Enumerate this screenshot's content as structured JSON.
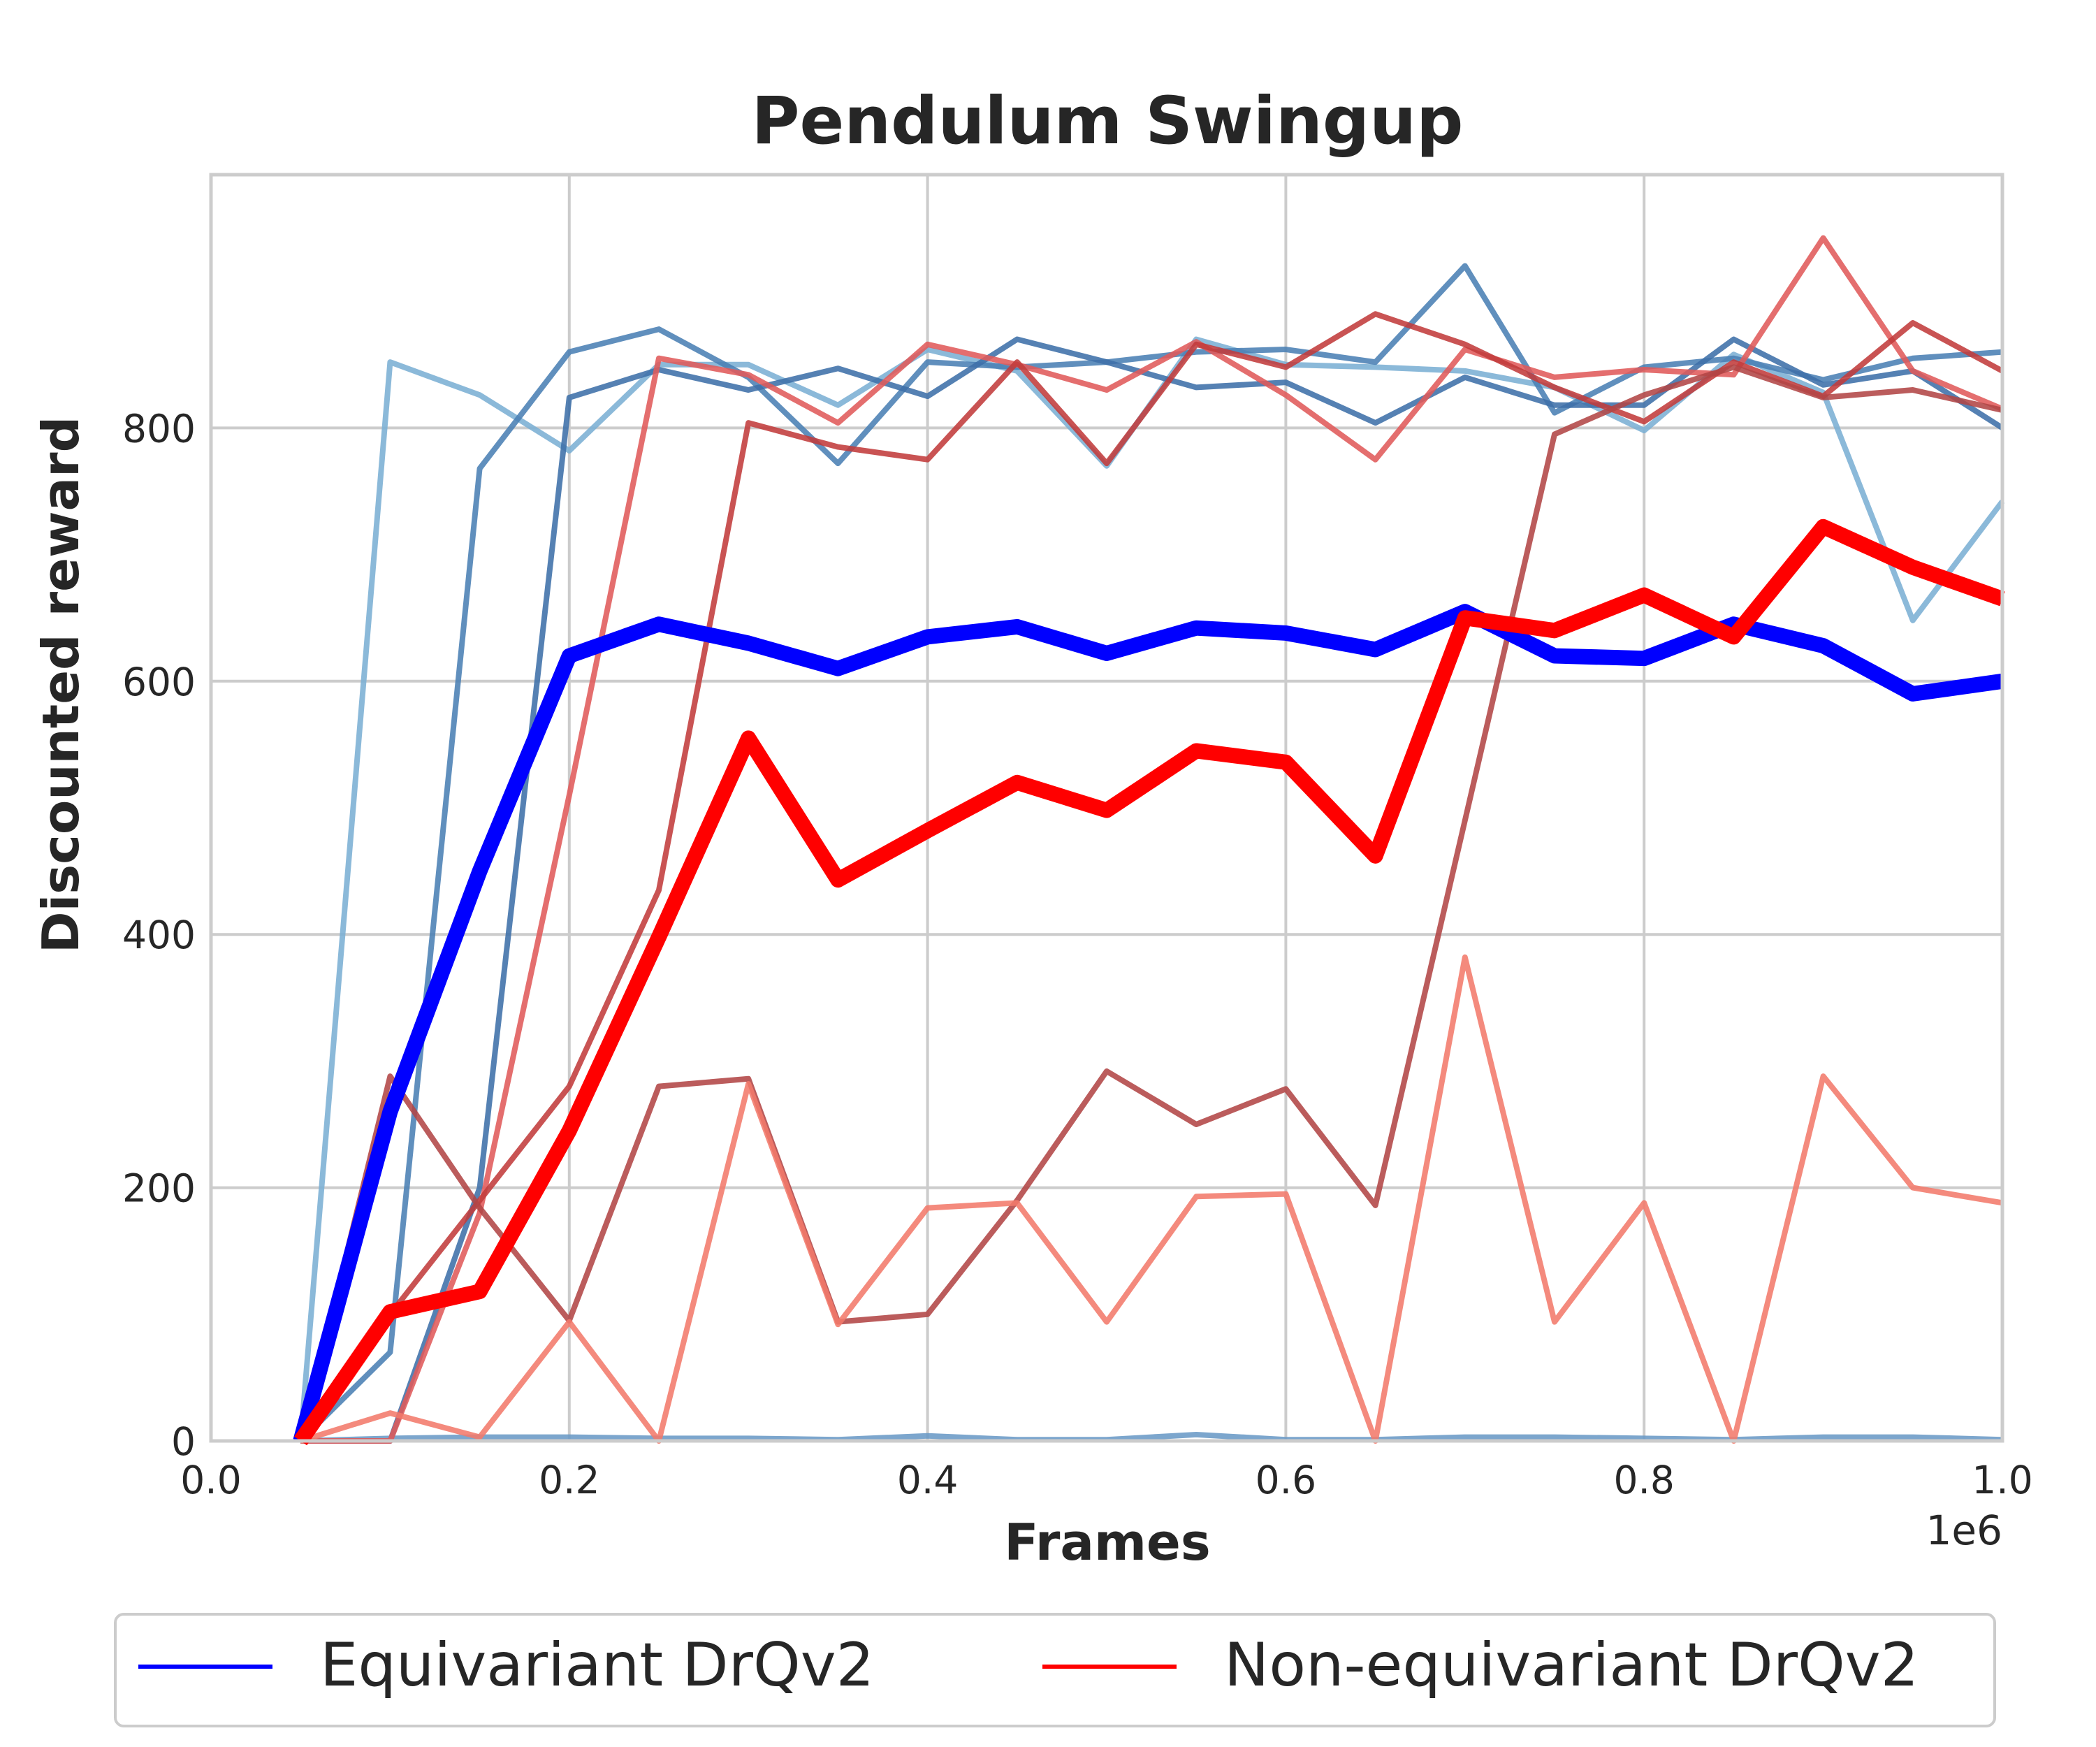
{
  "chart_data": {
    "type": "line",
    "title": "Pendulum Swingup",
    "xlabel": "Frames",
    "ylabel": "Discounted reward",
    "x_offset_label": "1e6",
    "xlim": [
      0.0,
      1.0
    ],
    "ylim": [
      0,
      1000
    ],
    "x_ticks": [
      0.0,
      0.2,
      0.4,
      0.6,
      0.8,
      1.0
    ],
    "x_tick_labels": [
      "0.0",
      "0.2",
      "0.4",
      "0.6",
      "0.8",
      "1.0"
    ],
    "y_ticks": [
      0,
      200,
      400,
      600,
      800
    ],
    "y_tick_labels": [
      "0",
      "200",
      "400",
      "600",
      "800"
    ],
    "grid": true,
    "legend_position": "bottom",
    "x": [
      0.05,
      0.1,
      0.15,
      0.2,
      0.25,
      0.3,
      0.35,
      0.4,
      0.45,
      0.5,
      0.55,
      0.6,
      0.65,
      0.7,
      0.75,
      0.8,
      0.85,
      0.9,
      0.95,
      1.0
    ],
    "series": [
      {
        "name": "Equivariant DrQv2",
        "role": "mean",
        "color": "#0000ff",
        "values": [
          0,
          260,
          450,
          620,
          645,
          630,
          610,
          635,
          643,
          622,
          642,
          638,
          625,
          655,
          620,
          618,
          645,
          628,
          590,
          600
        ]
      },
      {
        "name": "Non-equivariant DrQv2",
        "role": "mean",
        "color": "#ff0000",
        "values": [
          0,
          102,
          118,
          245,
          398,
          555,
          443,
          482,
          520,
          498,
          545,
          536,
          462,
          650,
          640,
          668,
          635,
          722,
          690,
          665
        ]
      }
    ],
    "runs": [
      {
        "group": "Equivariant DrQv2",
        "color": "#7bafd4",
        "values": [
          0,
          852,
          826,
          782,
          850,
          850,
          818,
          862,
          845,
          770,
          870,
          850,
          848,
          845,
          832,
          798,
          858,
          828,
          648,
          742
        ]
      },
      {
        "group": "Equivariant DrQv2",
        "color": "#4a7fb4",
        "values": [
          0,
          70,
          768,
          860,
          878,
          840,
          772,
          852,
          848,
          852,
          860,
          862,
          852,
          928,
          812,
          848,
          855,
          838,
          855,
          860
        ]
      },
      {
        "group": "Equivariant DrQv2",
        "color": "#3d6fa8",
        "values": [
          0,
          0,
          200,
          824,
          846,
          830,
          847,
          825,
          870,
          852,
          832,
          836,
          804,
          840,
          818,
          818,
          870,
          834,
          845,
          800
        ]
      },
      {
        "group": "Equivariant DrQv2",
        "color": "#6a9ac6",
        "values": [
          0,
          2,
          3,
          3,
          2,
          2,
          1,
          4,
          1,
          1,
          5,
          1,
          1,
          3,
          3,
          2,
          1,
          3,
          3,
          1
        ]
      },
      {
        "group": "Non-equivariant DrQv2",
        "color": "#e05a5a",
        "values": [
          0,
          0,
          180,
          510,
          855,
          842,
          804,
          866,
          850,
          830,
          868,
          826,
          775,
          862,
          840,
          846,
          842,
          950,
          845,
          815
        ]
      },
      {
        "group": "Non-equivariant DrQv2",
        "color": "#c23b3b",
        "values": [
          0,
          100,
          190,
          280,
          435,
          804,
          785,
          775,
          852,
          772,
          866,
          848,
          890,
          866,
          832,
          805,
          852,
          825,
          883,
          845
        ]
      },
      {
        "group": "Non-equivariant DrQv2",
        "color": "#b24545",
        "values": [
          0,
          288,
          184,
          95,
          280,
          286,
          94,
          100,
          190,
          292,
          250,
          278,
          186,
          490,
          795,
          826,
          848,
          824,
          830,
          814
        ]
      },
      {
        "group": "Non-equivariant DrQv2",
        "color": "#f27a6b",
        "values": [
          0,
          22,
          3,
          94,
          0,
          282,
          92,
          184,
          188,
          94,
          193,
          195,
          0,
          382,
          94,
          188,
          0,
          288,
          200,
          188
        ]
      }
    ]
  }
}
